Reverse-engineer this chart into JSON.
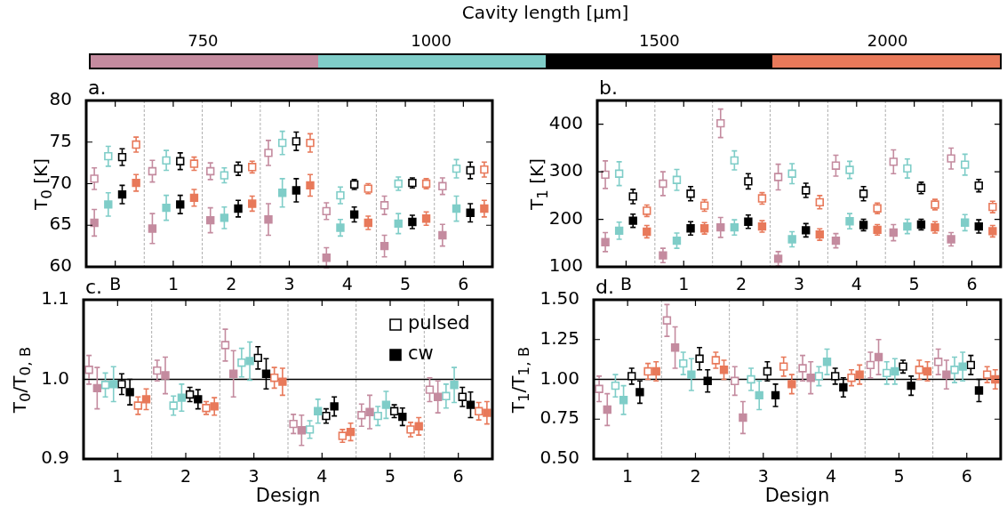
{
  "chart_data": [
    {
      "type": "other",
      "title": "Cavity length [μm]",
      "categories": [
        "750",
        "1000",
        "1500",
        "2000"
      ],
      "colors": [
        "#c48b9f",
        "#7fcdc8",
        "#000000",
        "#e8795a"
      ]
    },
    {
      "type": "scatter",
      "title": "a.",
      "ylabel": "T$_{0}$ [K]",
      "categories": [
        "B",
        "1",
        "2",
        "3",
        "4",
        "5",
        "6"
      ],
      "ylim": [
        60,
        80
      ],
      "yticks": [
        60,
        65,
        70,
        75,
        80
      ],
      "grid": "x",
      "marker": "square",
      "series": [
        {
          "color": "#c48b9f",
          "values": [
            70.6,
            71.5,
            71.5,
            73.7,
            66.7,
            67.4,
            69.7
          ],
          "errors": [
            1.3,
            1.3,
            1.0,
            1.5,
            1.0,
            1.1,
            1.0
          ]
        },
        {
          "color": "#c48b9f",
          "values": [
            65.3,
            64.6,
            65.6,
            65.7,
            61.1,
            62.5,
            63.8
          ],
          "errors": [
            1.6,
            1.8,
            1.5,
            1.9,
            1.2,
            1.3,
            1.3
          ]
        },
        {
          "color": "#7fcdc8",
          "values": [
            73.3,
            72.8,
            71.0,
            74.9,
            68.6,
            70.0,
            71.8
          ],
          "errors": [
            1.2,
            1.2,
            0.9,
            1.4,
            1.0,
            0.8,
            1.1
          ]
        },
        {
          "color": "#7fcdc8",
          "values": [
            67.5,
            67.1,
            65.9,
            68.9,
            64.7,
            65.2,
            67.0
          ],
          "errors": [
            1.4,
            1.5,
            1.3,
            1.7,
            1.0,
            1.2,
            1.5
          ]
        },
        {
          "color": "#000000",
          "values": [
            73.2,
            72.7,
            71.8,
            75.1,
            69.9,
            70.1,
            71.6
          ],
          "errors": [
            1.0,
            1.0,
            0.8,
            1.1,
            0.6,
            0.6,
            1.0
          ]
        },
        {
          "color": "#000000",
          "values": [
            68.7,
            67.5,
            67.0,
            69.2,
            66.3,
            65.4,
            66.5
          ],
          "errors": [
            1.1,
            1.1,
            1.0,
            1.4,
            0.9,
            0.8,
            1.1
          ]
        },
        {
          "color": "#e8795a",
          "values": [
            74.7,
            72.4,
            72.0,
            74.9,
            69.4,
            70.0,
            71.7
          ],
          "errors": [
            0.9,
            0.8,
            0.7,
            1.1,
            0.6,
            0.6,
            0.9
          ]
        },
        {
          "color": "#e8795a",
          "values": [
            70.1,
            68.3,
            67.6,
            69.8,
            65.3,
            65.8,
            67.0
          ],
          "errors": [
            1.0,
            1.0,
            0.9,
            1.3,
            0.8,
            0.8,
            1.0
          ]
        }
      ]
    },
    {
      "type": "scatter",
      "title": "b.",
      "ylabel": "T$_{1}$ [K]",
      "categories": [
        "B",
        "1",
        "2",
        "3",
        "4",
        "5",
        "6"
      ],
      "ylim": [
        100,
        450
      ],
      "yticks": [
        100,
        200,
        300,
        400
      ],
      "grid": "x",
      "marker": "square",
      "series": [
        {
          "color": "#c48b9f",
          "values": [
            294,
            275,
            402,
            289,
            313,
            321,
            328
          ],
          "errors": [
            29,
            25,
            30,
            27,
            22,
            25,
            22
          ]
        },
        {
          "color": "#c48b9f",
          "values": [
            152,
            124,
            183,
            117,
            155,
            172,
            158
          ],
          "errors": [
            20,
            15,
            21,
            15,
            15,
            17,
            14
          ]
        },
        {
          "color": "#7fcdc8",
          "values": [
            296,
            283,
            324,
            296,
            304,
            307,
            315
          ],
          "errors": [
            25,
            22,
            20,
            21,
            18,
            20,
            22
          ]
        },
        {
          "color": "#7fcdc8",
          "values": [
            176,
            155,
            183,
            158,
            196,
            185,
            193
          ],
          "errors": [
            18,
            16,
            16,
            16,
            16,
            15,
            17
          ]
        },
        {
          "color": "#000000",
          "values": [
            248,
            254,
            280,
            261,
            254,
            266,
            271
          ],
          "errors": [
            15,
            15,
            16,
            15,
            15,
            12,
            13
          ]
        },
        {
          "color": "#000000",
          "values": [
            197,
            181,
            195,
            177,
            188,
            189,
            185
          ],
          "errors": [
            14,
            14,
            14,
            14,
            12,
            11,
            14
          ]
        },
        {
          "color": "#e8795a",
          "values": [
            218,
            229,
            244,
            236,
            223,
            231,
            226
          ],
          "errors": [
            12,
            12,
            12,
            14,
            11,
            11,
            12
          ]
        },
        {
          "color": "#e8795a",
          "values": [
            174,
            181,
            185,
            168,
            178,
            183,
            175
          ],
          "errors": [
            13,
            12,
            12,
            12,
            11,
            12,
            12
          ]
        }
      ]
    },
    {
      "type": "scatter",
      "title": "c.",
      "ylabel": "T$_{0}$/T$_{0, B}$",
      "xlabel": "Design",
      "categories": [
        "1",
        "2",
        "3",
        "4",
        "5",
        "6"
      ],
      "ylim": [
        0.9,
        1.1
      ],
      "yticks": [
        0.9,
        {
          "value": 1.0,
          "label": "1.0"
        },
        1.1
      ],
      "grid": "x",
      "marker": "square",
      "legend": "top right",
      "ref_lines": [
        {
          "axis": "y",
          "value": 1.0,
          "color": "#000000"
        }
      ],
      "series": [
        {
          "color": "#c48b9f",
          "values": [
            1.012,
            1.011,
            1.043,
            0.944,
            0.955,
            0.987
          ],
          "errors": [
            0.018,
            0.013,
            0.02,
            0.012,
            0.014,
            0.015
          ]
        },
        {
          "color": "#c48b9f",
          "values": [
            0.989,
            1.005,
            1.007,
            0.936,
            0.959,
            0.978
          ],
          "errors": [
            0.026,
            0.023,
            0.029,
            0.019,
            0.021,
            0.02
          ]
        },
        {
          "color": "#7fcdc8",
          "values": [
            0.993,
            0.967,
            1.021,
            0.937,
            0.954,
            0.979
          ],
          "errors": [
            0.015,
            0.012,
            0.018,
            0.011,
            0.012,
            0.015
          ]
        },
        {
          "color": "#7fcdc8",
          "values": [
            0.994,
            0.977,
            1.023,
            0.96,
            0.968,
            0.993
          ],
          "errors": [
            0.022,
            0.017,
            0.024,
            0.015,
            0.017,
            0.022
          ]
        },
        {
          "name": "pulsed",
          "color": "#000000",
          "values": [
            0.994,
            0.981,
            1.027,
            0.954,
            0.96,
            0.978
          ],
          "errors": [
            0.013,
            0.009,
            0.014,
            0.009,
            0.008,
            0.012
          ]
        },
        {
          "name": "cw",
          "color": "#000000",
          "values": [
            0.984,
            0.975,
            1.007,
            0.966,
            0.953,
            0.968
          ],
          "errors": [
            0.016,
            0.012,
            0.019,
            0.012,
            0.011,
            0.016
          ]
        },
        {
          "color": "#e8795a",
          "values": [
            0.967,
            0.964,
            1.002,
            0.929,
            0.937,
            0.96
          ],
          "errors": [
            0.011,
            0.008,
            0.013,
            0.008,
            0.009,
            0.011
          ]
        },
        {
          "color": "#e8795a",
          "values": [
            0.975,
            0.966,
            0.997,
            0.934,
            0.941,
            0.958
          ],
          "errors": [
            0.013,
            0.011,
            0.017,
            0.011,
            0.011,
            0.014
          ]
        }
      ]
    },
    {
      "type": "scatter",
      "title": "d.",
      "ylabel": "T$_{1}$/T$_{1, B}$",
      "xlabel": "Design",
      "categories": [
        "1",
        "2",
        "3",
        "4",
        "5",
        "6"
      ],
      "ylim": [
        0.5,
        1.5
      ],
      "yticks": [
        {
          "value": 0.5,
          "label": "0.50"
        },
        {
          "value": 0.75,
          "label": "0.75"
        },
        {
          "value": 1.0,
          "label": "1.00"
        },
        {
          "value": 1.25,
          "label": "1.25"
        },
        {
          "value": 1.5,
          "label": "1.50"
        }
      ],
      "grid": "x",
      "marker": "square",
      "ref_lines": [
        {
          "axis": "y",
          "value": 1.0,
          "color": "#000000"
        }
      ],
      "series": [
        {
          "color": "#c48b9f",
          "values": [
            0.94,
            1.37,
            0.99,
            1.07,
            1.09,
            1.11
          ],
          "errors": [
            0.08,
            0.1,
            0.09,
            0.08,
            0.08,
            0.08
          ]
        },
        {
          "color": "#c48b9f",
          "values": [
            0.81,
            1.2,
            0.76,
            1.01,
            1.14,
            1.03
          ],
          "errors": [
            0.1,
            0.13,
            0.1,
            0.1,
            0.11,
            0.09
          ]
        },
        {
          "color": "#7fcdc8",
          "values": [
            0.96,
            1.1,
            1.0,
            1.02,
            1.04,
            1.06
          ],
          "errors": [
            0.07,
            0.07,
            0.07,
            0.06,
            0.07,
            0.08
          ]
        },
        {
          "color": "#7fcdc8",
          "values": [
            0.87,
            1.03,
            0.9,
            1.11,
            1.05,
            1.08
          ],
          "errors": [
            0.09,
            0.1,
            0.09,
            0.08,
            0.08,
            0.09
          ]
        },
        {
          "color": "#000000",
          "values": [
            1.02,
            1.13,
            1.05,
            1.02,
            1.08,
            1.09
          ],
          "errors": [
            0.05,
            0.07,
            0.06,
            0.05,
            0.04,
            0.06
          ]
        },
        {
          "color": "#000000",
          "values": [
            0.92,
            0.99,
            0.9,
            0.95,
            0.96,
            0.93
          ],
          "errors": [
            0.07,
            0.07,
            0.07,
            0.06,
            0.06,
            0.07
          ]
        },
        {
          "color": "#e8795a",
          "values": [
            1.05,
            1.12,
            1.08,
            1.01,
            1.06,
            1.03
          ],
          "errors": [
            0.05,
            0.05,
            0.06,
            0.05,
            0.06,
            0.05
          ]
        },
        {
          "color": "#e8795a",
          "values": [
            1.05,
            1.06,
            0.97,
            1.03,
            1.05,
            1.0
          ],
          "errors": [
            0.06,
            0.06,
            0.06,
            0.06,
            0.06,
            0.06
          ]
        }
      ]
    }
  ]
}
